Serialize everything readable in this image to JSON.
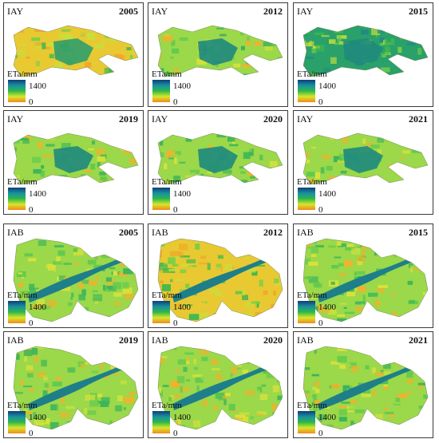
{
  "legend": {
    "title": "ETa/mm",
    "max": "1400",
    "min": "0",
    "colors": [
      "#0d3f7a",
      "#1a8fa0",
      "#2db84a",
      "#d8e62a",
      "#f08a1e"
    ]
  },
  "panels": [
    {
      "region": "IAY",
      "year": "2005",
      "tone": "dry"
    },
    {
      "region": "IAY",
      "year": "2012",
      "tone": "mid"
    },
    {
      "region": "IAY",
      "year": "2015",
      "tone": "wet"
    },
    {
      "region": "IAY",
      "year": "2019",
      "tone": "mid"
    },
    {
      "region": "IAY",
      "year": "2020",
      "tone": "mid"
    },
    {
      "region": "IAY",
      "year": "2021",
      "tone": "mid"
    },
    {
      "region": "IAB",
      "year": "2005",
      "tone": "mid"
    },
    {
      "region": "IAB",
      "year": "2012",
      "tone": "dry"
    },
    {
      "region": "IAB",
      "year": "2015",
      "tone": "mid"
    },
    {
      "region": "IAB",
      "year": "2019",
      "tone": "mid"
    },
    {
      "region": "IAB",
      "year": "2020",
      "tone": "mid"
    },
    {
      "region": "IAB",
      "year": "2021",
      "tone": "mid"
    }
  ]
}
